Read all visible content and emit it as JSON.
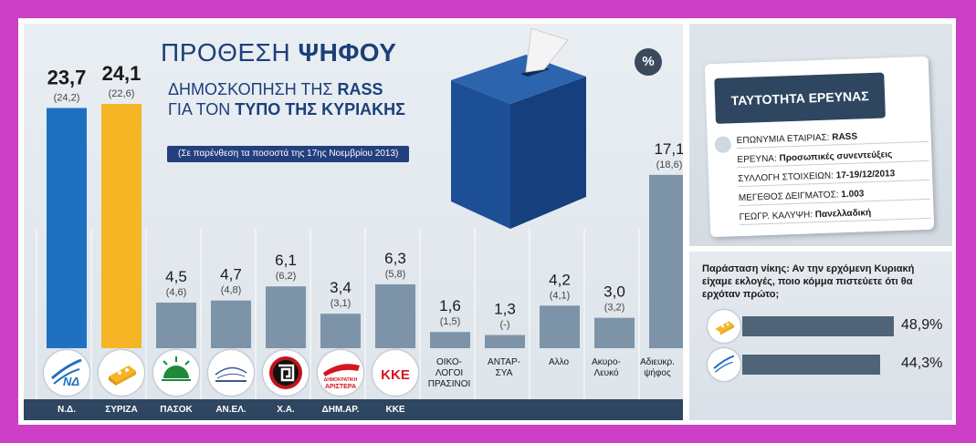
{
  "title": {
    "main_light": "ΠΡΟΘΕΣΗ",
    "main_bold": "ΨΗΦΟΥ",
    "sub1_light": "ΔΗΜΟΣΚΟΠΗΣΗ ΤΗΣ",
    "sub1_bold": "RASS",
    "sub2_light": "ΓΙΑ ΤΟΝ",
    "sub2_bold": "ΤΥΠΟ ΤΗΣ ΚΥΡΙΑΚΗΣ",
    "note": "(Σε παρένθεση τα ποσοστά της 17ης Νοεμβρίου 2013)",
    "percent_badge": "%"
  },
  "chart_data": {
    "type": "bar",
    "categories": [
      "Ν.Δ.",
      "ΣΥΡΙΖΑ",
      "ΠΑΣΟΚ",
      "ΑΝ.ΕΛ.",
      "Χ.Α.",
      "ΔΗΜ.ΑΡ.",
      "ΚΚΕ",
      "ΟΙΚΟ-ΛΟΓΟΙ ΠΡΑΣΙΝΟΙ",
      "ΑΝΤΑΡ-ΣΥΑ",
      "Αλλο",
      "Ακυρο-Λευκό",
      "Αδιευκρ. ψήφος"
    ],
    "values": [
      23.7,
      24.1,
      4.5,
      4.7,
      6.1,
      3.4,
      6.3,
      1.6,
      1.3,
      4.2,
      3.0,
      17.1
    ],
    "value_labels": [
      "23,7",
      "24,1",
      "4,5",
      "4,7",
      "6,1",
      "3,4",
      "6,3",
      "1,6",
      "1,3",
      "4,2",
      "3,0",
      "17,1"
    ],
    "previous_labels": [
      "(24,2)",
      "(22,6)",
      "(4,6)",
      "(4,8)",
      "(6,2)",
      "(3,1)",
      "(5,8)",
      "(1,5)",
      "(-)",
      "(4,1)",
      "(3,2)",
      "(18,6)"
    ],
    "ylim": [
      0,
      25
    ],
    "colors": [
      "#1f70c1",
      "#f6b525",
      "#7d94a8",
      "#7d94a8",
      "#7d94a8",
      "#7d94a8",
      "#7d94a8",
      "#7d94a8",
      "#7d94a8",
      "#7d94a8",
      "#7d94a8",
      "#7d94a8"
    ],
    "unit": "%"
  },
  "bottom_labels": [
    "Ν.Δ.",
    "ΣΥΡΙΖΑ",
    "ΠΑΣΟΚ",
    "ΑΝ.ΕΛ.",
    "Χ.Α.",
    "ΔΗΜ.ΑΡ.",
    "ΚΚΕ"
  ],
  "category_texts": {
    "oikologoi": [
      "ΟΙΚΟ-",
      "ΛΟΓΟΙ",
      "ΠΡΑΣΙΝΟΙ"
    ],
    "antarsya": [
      "ΑΝΤΑΡ-",
      "ΣΥΑ"
    ],
    "allo": [
      "Αλλο"
    ],
    "akyro": [
      "Ακυρο-",
      "Λευκό"
    ],
    "adieykr": [
      "Αδιευκρ.",
      "ψήφος"
    ]
  },
  "logos": {
    "nd": "ΝΔ",
    "dimar": [
      "ΔΗΜΟΚΡΑΤΙΚΗ",
      "ΑΡΙΣΤΕΡΑ"
    ],
    "kke": "ΚΚΕ"
  },
  "survey_card": {
    "title": "ΤΑΥΤΟΤΗΤΑ ΕΡΕΥΝΑΣ",
    "rows": [
      {
        "label": "ΕΠΩΝΥΜΙΑ ΕΤΑΙΡΙΑΣ:",
        "value": "RASS"
      },
      {
        "label": "ΕΡΕΥΝΑ:",
        "value": "Προσωπικές συνεντεύξεις"
      },
      {
        "label": "ΣΥΛΛΟΓΗ ΣΤΟΙΧΕΙΩΝ:",
        "value": "17-19/12/2013"
      },
      {
        "label": "ΜΕΓΕΘΟΣ ΔΕΙΓΜΑΤΟΣ:",
        "value": "1.003"
      },
      {
        "label": "ΓΕΩΓΡ. ΚΑΛΥΨΗ:",
        "value": "Πανελλαδική"
      }
    ]
  },
  "victory": {
    "question": "Παράσταση νίκης: Αν την ερχόμενη Κυριακή είχαμε εκλογές, ποιο κόμμα πιστεύετε ότι θα ερχόταν πρώτο;",
    "chart_data": {
      "type": "bar",
      "orientation": "horizontal",
      "categories": [
        "ΣΥΡΙΖΑ",
        "Ν.Δ."
      ],
      "values": [
        48.9,
        44.3
      ],
      "value_labels": [
        "48,9%",
        "44,3%"
      ],
      "xlim": [
        0,
        100
      ]
    }
  }
}
